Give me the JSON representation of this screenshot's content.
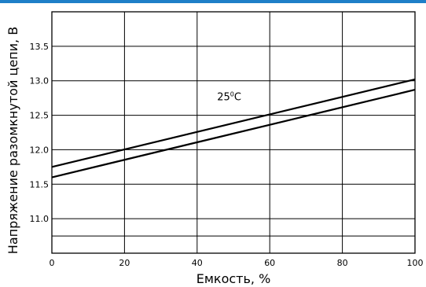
{
  "accent_color": "#1e7fc8",
  "chart_data": {
    "type": "line",
    "title": "",
    "xlabel": "Емкость, %",
    "ylabel": "Напряжение разомкнутой цепи, В",
    "xlim": [
      0,
      100
    ],
    "ylim": [
      10.5,
      14.0
    ],
    "x_ticks": [
      0,
      20,
      40,
      60,
      80,
      100
    ],
    "x_tick_labels": [
      "0",
      "20",
      "40",
      "60",
      "80",
      "100"
    ],
    "y_ticks": [
      11.0,
      11.5,
      12.0,
      12.5,
      13.0,
      13.5
    ],
    "y_tick_labels": [
      "11.0",
      "11.5",
      "12.0",
      "12.5",
      "13.0",
      "13.5"
    ],
    "grid": true,
    "series": [
      {
        "x": [
          0,
          100
        ],
        "y": [
          11.75,
          13.02
        ]
      },
      {
        "x": [
          0,
          100
        ],
        "y": [
          11.6,
          12.87
        ]
      }
    ],
    "annotations": [
      {
        "text_main": "25",
        "text_sup": "0",
        "text_tail": "C",
        "x": 45.5,
        "y": 12.72
      }
    ]
  }
}
